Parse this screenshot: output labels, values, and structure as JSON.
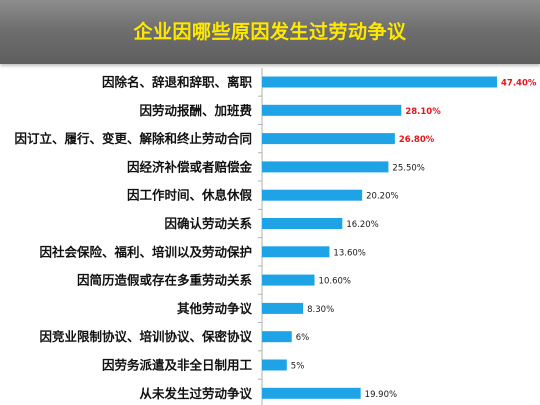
{
  "header": {
    "title": "企业因哪些原因发生过劳动争议"
  },
  "colors": {
    "bar": "#1ea4e6",
    "highlight_label": "#e8141a",
    "normal_label": "#1a1a1a",
    "title": "#ffe800",
    "axis": "#b0b0b0"
  },
  "chart_data": {
    "type": "bar",
    "orientation": "horizontal",
    "title": "企业因哪些原因发生过劳动争议",
    "xlabel": "",
    "ylabel": "",
    "xlim": [
      0,
      50
    ],
    "grid": false,
    "legend": "none",
    "categories": [
      "因除名、辞退和辞职、离职",
      "因劳动报酬、加班费",
      "因订立、履行、变更、解除和终止劳动合同",
      "因经济补偿或者赔偿金",
      "因工作时间、休息休假",
      "因确认劳动关系",
      "因社会保险、福利、培训以及劳动保护",
      "因简历造假或存在多重劳动关系",
      "其他劳动争议",
      "因竞业限制协议、培训协议、保密协议",
      "因劳务派遣及非全日制用工",
      "从未发生过劳动争议"
    ],
    "values": [
      47.4,
      28.1,
      26.8,
      25.5,
      20.2,
      16.2,
      13.6,
      10.6,
      8.3,
      6,
      5,
      19.9
    ],
    "value_labels": [
      "47.40%",
      "28.10%",
      "26.80%",
      "25.50%",
      "20.20%",
      "16.20%",
      "13.60%",
      "10.60%",
      "8.30%",
      "6%",
      "5%",
      "19.90%"
    ],
    "highlighted": [
      true,
      true,
      true,
      false,
      false,
      false,
      false,
      false,
      false,
      false,
      false,
      false
    ]
  }
}
